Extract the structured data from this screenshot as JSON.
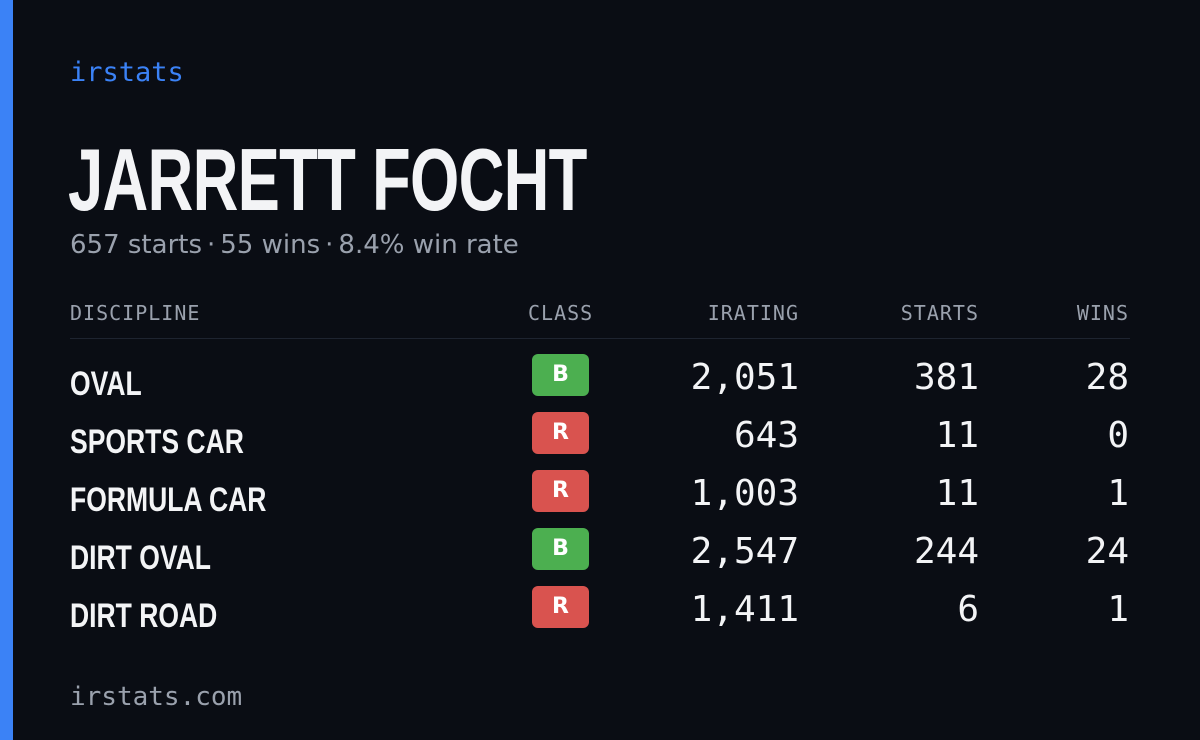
{
  "brand": "irstats",
  "driver": {
    "name": "JARRETT FOCHT",
    "summary": {
      "starts": "657 starts",
      "wins": "55 wins",
      "win_rate": "8.4% win rate",
      "separator": "·"
    }
  },
  "table": {
    "headers": {
      "discipline": "DISCIPLINE",
      "class": "CLASS",
      "irating": "IRATING",
      "starts": "STARTS",
      "wins": "WINS"
    },
    "rows": [
      {
        "discipline": "OVAL",
        "class": "B",
        "irating": "2,051",
        "starts": "381",
        "wins": "28"
      },
      {
        "discipline": "SPORTS CAR",
        "class": "R",
        "irating": "643",
        "starts": "11",
        "wins": "0"
      },
      {
        "discipline": "FORMULA CAR",
        "class": "R",
        "irating": "1,003",
        "starts": "11",
        "wins": "1"
      },
      {
        "discipline": "DIRT OVAL",
        "class": "B",
        "irating": "2,547",
        "starts": "244",
        "wins": "24"
      },
      {
        "discipline": "DIRT ROAD",
        "class": "R",
        "irating": "1,411",
        "starts": "6",
        "wins": "1"
      }
    ]
  },
  "class_colors": {
    "B": "#4caf50",
    "R": "#d9534f"
  },
  "colors": {
    "accent": "#3b82f6",
    "background": "#0a0d14",
    "text": "#f3f4f6",
    "muted": "#9aa1ad"
  },
  "footer": "irstats.com"
}
